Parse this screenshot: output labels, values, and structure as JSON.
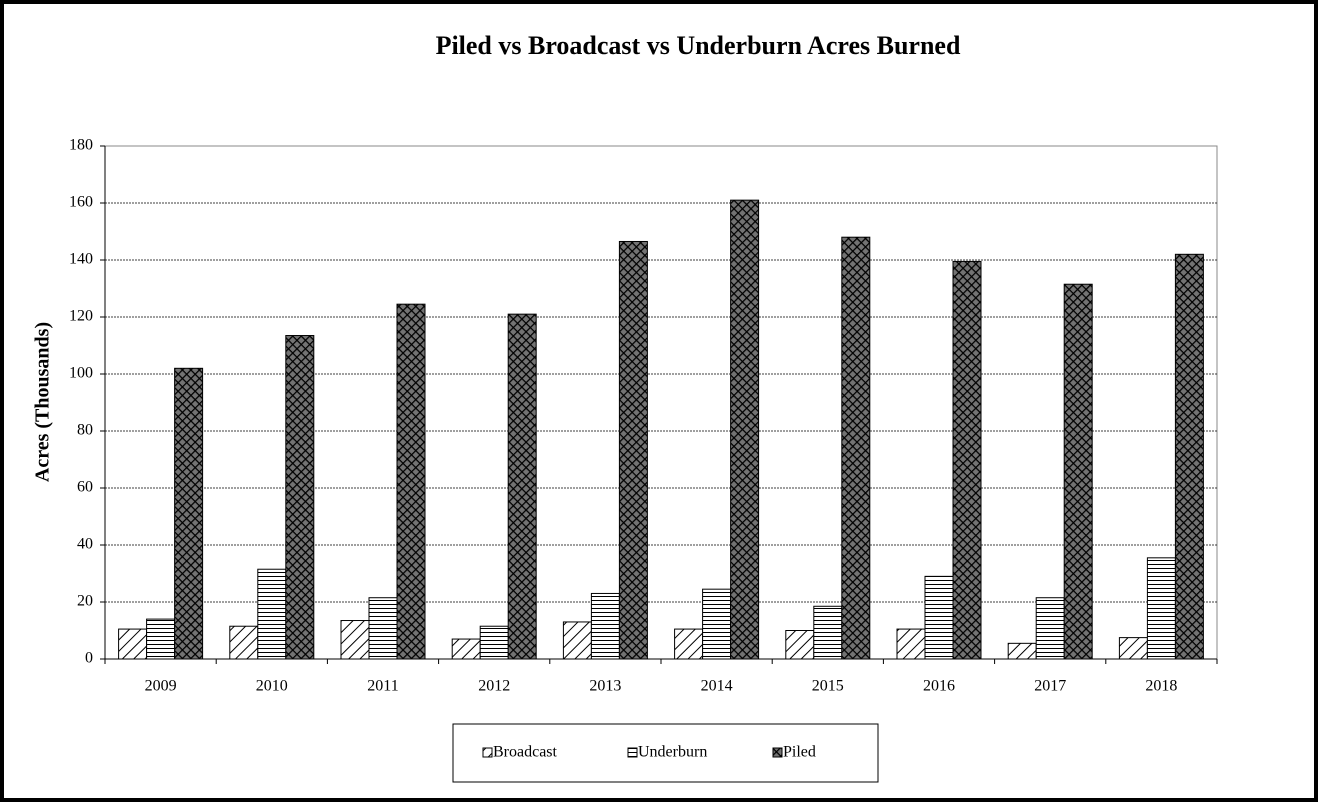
{
  "chart_data": {
    "type": "bar",
    "title": "Piled vs Broadcast vs Underburn Acres Burned",
    "y_label": "Acres (Thousands)",
    "categories": [
      "2009",
      "2010",
      "2011",
      "2012",
      "2013",
      "2014",
      "2015",
      "2016",
      "2017",
      "2018"
    ],
    "series": [
      {
        "name": "Broadcast",
        "color": "#000000",
        "pattern": "diagonal",
        "values": [
          10.5,
          11.5,
          13.5,
          7,
          13,
          10.5,
          10,
          10.5,
          5.5,
          7.5
        ]
      },
      {
        "name": "Underburn",
        "color": "#000000",
        "pattern": "horizontal",
        "values": [
          14,
          31.5,
          21.5,
          11.5,
          23,
          24.5,
          18.5,
          29,
          21.5,
          35.5
        ]
      },
      {
        "name": "Piled",
        "color": "#000000",
        "pattern": "crosshatch",
        "values": [
          102,
          113.5,
          124.5,
          121,
          146.5,
          161,
          148,
          139.5,
          131.5,
          142
        ]
      }
    ],
    "ylim": [
      0,
      180
    ],
    "yticks": [
      0,
      20,
      40,
      60,
      80,
      100,
      120,
      140,
      160,
      180
    ],
    "grid": true,
    "legend": "bottom"
  }
}
